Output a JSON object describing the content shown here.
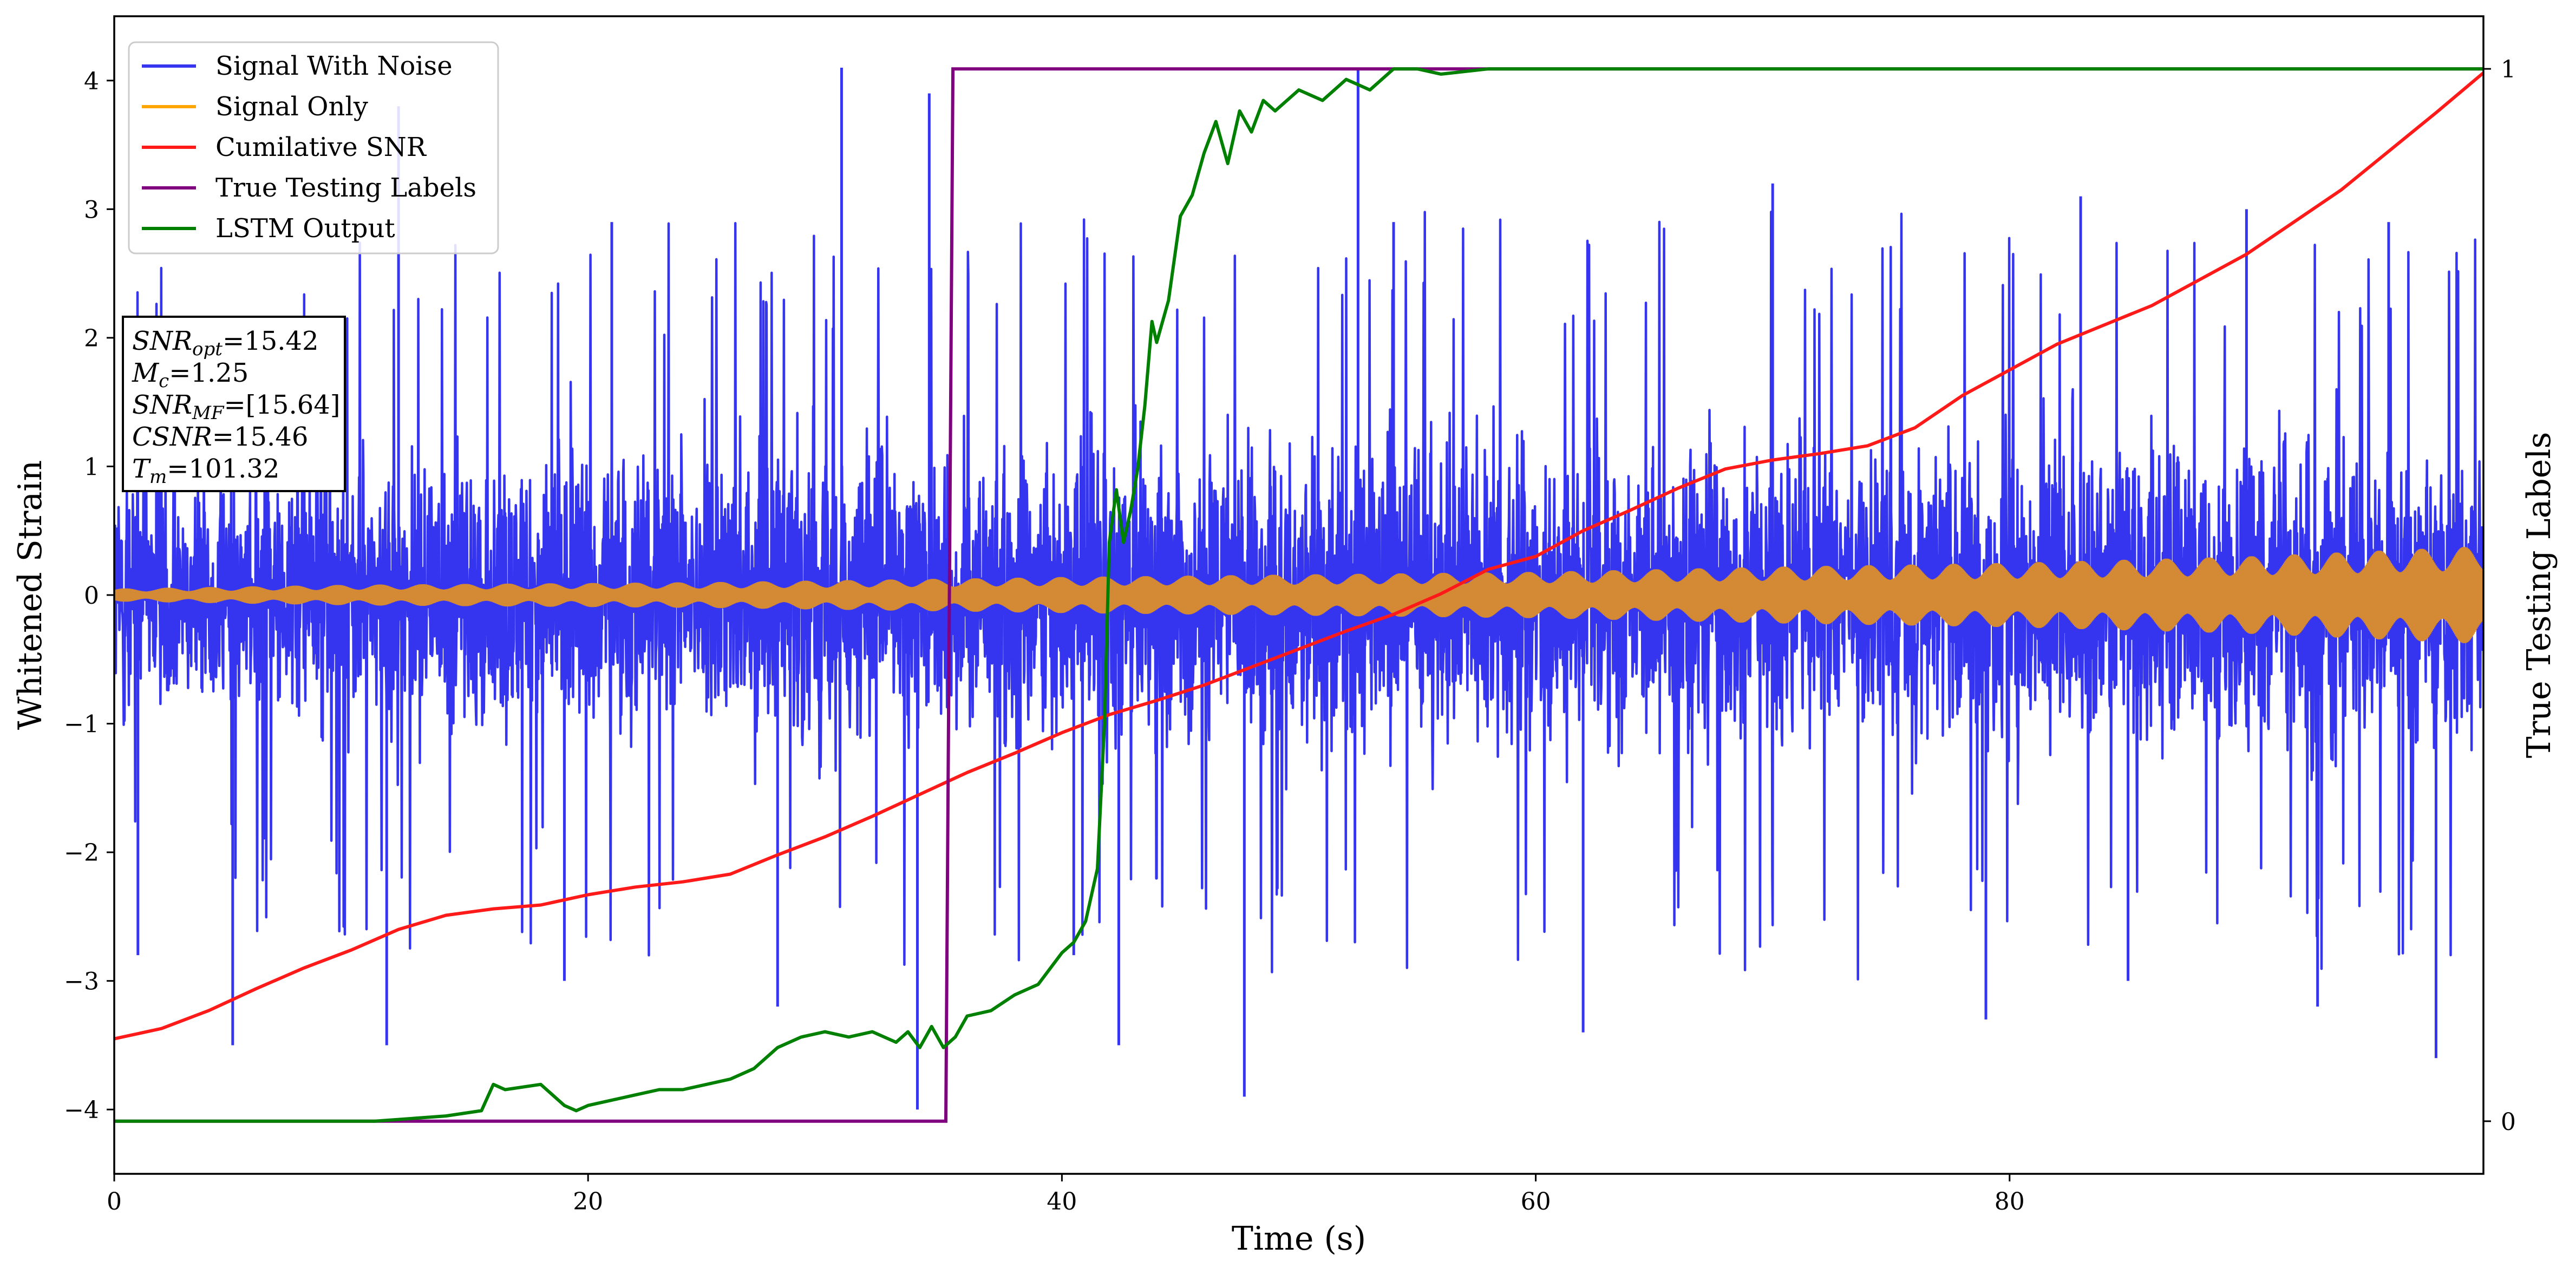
{
  "chart_data": {
    "type": "line",
    "title": "",
    "xlabel": "Time (s)",
    "ylabel": "Whitened Strain",
    "y2label": "True Testing Labels",
    "xlim": [
      0,
      100
    ],
    "ylim": [
      -4.5,
      4.5
    ],
    "y2lim": [
      -0.05,
      1.05
    ],
    "x_ticks": [
      0,
      20,
      40,
      60,
      80
    ],
    "x_tick_labels": [
      "0",
      "20",
      "40",
      "60",
      "80"
    ],
    "y_ticks": [
      4,
      3,
      2,
      1,
      0,
      -1,
      -2,
      -3,
      -4
    ],
    "y_tick_labels": [
      "4",
      "3",
      "2",
      "1",
      "0",
      "−1",
      "−2",
      "−3",
      "−4"
    ],
    "y2_ticks": [
      1,
      0
    ],
    "y2_tick_labels": [
      "1",
      "0"
    ],
    "legend_position": "top-left",
    "colors": {
      "noise": "#3535f0",
      "signal": "#ffa500",
      "signal_overlap": "#d48a35",
      "csnr": "#ff1a1a",
      "labels": "#800080",
      "lstm": "#008000"
    },
    "series": [
      {
        "name": "Signal With Noise",
        "axis": "left",
        "description_range": "dense noise, mostly between -2 and 2 with spikes to about ±4",
        "envelope_upper": [
          [
            0,
            1.7
          ],
          [
            20,
            2.0
          ],
          [
            40,
            2.1
          ],
          [
            60,
            2.1
          ],
          [
            80,
            2.1
          ],
          [
            100,
            2.0
          ]
        ],
        "envelope_lower": [
          [
            0,
            -1.7
          ],
          [
            20,
            -2.0
          ],
          [
            40,
            -2.1
          ],
          [
            60,
            -2.1
          ],
          [
            80,
            -2.1
          ],
          [
            100,
            -2.0
          ]
        ],
        "spikes": [
          [
            1,
            -2.8
          ],
          [
            5,
            -3.5
          ],
          [
            11.5,
            -3.5
          ],
          [
            12,
            3.8
          ],
          [
            19,
            -3.0
          ],
          [
            21,
            2.9
          ],
          [
            28,
            -3.2
          ],
          [
            30.7,
            4.1
          ],
          [
            33.9,
            -4.0
          ],
          [
            34.4,
            3.9
          ],
          [
            40.5,
            -2.8
          ],
          [
            42.4,
            -3.5
          ],
          [
            47.7,
            -3.9
          ],
          [
            52.5,
            4.1
          ],
          [
            54,
            2.9
          ],
          [
            62,
            -3.4
          ],
          [
            70,
            3.2
          ],
          [
            79,
            -3.3
          ],
          [
            83,
            3.1
          ],
          [
            85,
            -3.0
          ],
          [
            90,
            3.0
          ],
          [
            93,
            -3.2
          ],
          [
            96,
            2.9
          ],
          [
            98,
            -3.6
          ]
        ]
      },
      {
        "name": "Signal Only",
        "axis": "left",
        "amplitude": [
          [
            0,
            0.05
          ],
          [
            10,
            0.08
          ],
          [
            25,
            0.1
          ],
          [
            40,
            0.14
          ],
          [
            60,
            0.18
          ],
          [
            70,
            0.22
          ],
          [
            80,
            0.25
          ],
          [
            90,
            0.3
          ],
          [
            100,
            0.38
          ]
        ]
      },
      {
        "name": "Cumilative SNR",
        "axis": "left",
        "x": [
          0,
          2,
          4,
          6,
          8,
          10,
          12,
          14,
          16,
          18,
          20,
          22,
          24,
          26,
          28,
          30,
          32,
          34,
          36,
          38,
          40,
          42,
          44,
          46,
          48,
          50,
          52,
          54,
          56,
          58,
          60,
          62,
          64,
          66,
          68,
          70,
          72,
          74,
          76,
          78,
          80,
          82,
          84,
          86,
          88,
          90,
          92,
          94,
          96,
          98,
          100
        ],
        "values": [
          -3.45,
          -3.37,
          -3.23,
          -3.06,
          -2.9,
          -2.76,
          -2.6,
          -2.49,
          -2.44,
          -2.41,
          -2.33,
          -2.27,
          -2.23,
          -2.17,
          -2.02,
          -1.88,
          -1.72,
          -1.55,
          -1.38,
          -1.23,
          -1.07,
          -0.93,
          -0.82,
          -0.7,
          -0.56,
          -0.42,
          -0.28,
          -0.15,
          0.01,
          0.2,
          0.3,
          0.5,
          0.66,
          0.83,
          0.98,
          1.05,
          1.1,
          1.16,
          1.3,
          1.55,
          1.75,
          1.95,
          2.1,
          2.25,
          2.45,
          2.65,
          2.9,
          3.15,
          3.45,
          3.75,
          4.06
        ]
      },
      {
        "name": "True Testing Labels",
        "axis": "right",
        "x": [
          0,
          35.1,
          35.4,
          100
        ],
        "values": [
          0,
          0,
          1,
          1
        ]
      },
      {
        "name": "LSTM Output",
        "axis": "right",
        "x": [
          0,
          11,
          14,
          15.5,
          16,
          16.5,
          18,
          19,
          19.5,
          20,
          21,
          22,
          23,
          24,
          25,
          26,
          27,
          28,
          29,
          30,
          31,
          32,
          33,
          33.5,
          34,
          34.5,
          35,
          35.5,
          36,
          37,
          38,
          39,
          40,
          40.5,
          41,
          41.5,
          41.8,
          42,
          42.3,
          42.6,
          42.9,
          43.2,
          43.5,
          43.8,
          44,
          44.5,
          45,
          45.5,
          46,
          46.5,
          47,
          47.5,
          48,
          48.5,
          49,
          49.5,
          50,
          51,
          52,
          53,
          54,
          55,
          56,
          58,
          60,
          62,
          64,
          100
        ],
        "values": [
          0,
          0,
          0.005,
          0.01,
          0.035,
          0.03,
          0.035,
          0.015,
          0.01,
          0.015,
          0.02,
          0.025,
          0.03,
          0.03,
          0.035,
          0.04,
          0.05,
          0.07,
          0.08,
          0.085,
          0.08,
          0.085,
          0.075,
          0.085,
          0.07,
          0.09,
          0.07,
          0.08,
          0.1,
          0.105,
          0.12,
          0.13,
          0.16,
          0.17,
          0.19,
          0.24,
          0.38,
          0.55,
          0.6,
          0.55,
          0.58,
          0.62,
          0.68,
          0.76,
          0.74,
          0.78,
          0.86,
          0.88,
          0.92,
          0.95,
          0.91,
          0.96,
          0.94,
          0.97,
          0.96,
          0.97,
          0.98,
          0.97,
          0.99,
          0.98,
          1.0,
          1.0,
          0.995,
          1.0,
          1.0,
          1.0,
          1.0,
          1.0
        ]
      }
    ],
    "annotation_lines": [
      {
        "label": "SNR",
        "sub": "opt",
        "value": "=15.42"
      },
      {
        "label": "M",
        "sub": "c",
        "value": "=1.25"
      },
      {
        "label": "SNR",
        "sub": "MF",
        "value": "=[15.64]"
      },
      {
        "label": "CSNR",
        "sub": "",
        "value": "=15.46"
      },
      {
        "label": "T",
        "sub": "m",
        "value": "=101.32"
      }
    ]
  }
}
